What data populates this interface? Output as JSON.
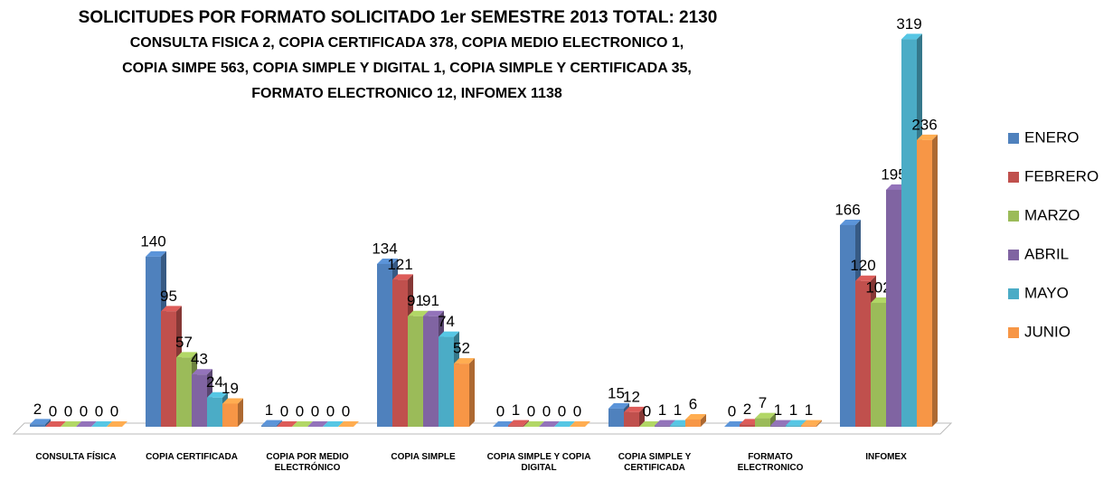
{
  "chart_data": {
    "type": "bar3d",
    "title": "SOLICITUDES POR FORMATO SOLICITADO  1er SEMESTRE 2013 TOTAL: 2130",
    "subtitle": [
      "CONSULTA FISICA 2, COPIA CERTIFICADA 378, COPIA MEDIO ELECTRONICO 1,",
      "COPIA SIMPE 563, COPIA SIMPLE Y DIGITAL 1, COPIA SIMPLE Y CERTIFICADA 35,",
      "FORMATO ELECTRONICO 12, INFOMEX 1138"
    ],
    "categories": [
      "CONSULTA FÍSICA",
      "COPIA CERTIFICADA",
      "COPIA POR MEDIO ELECTRÓNICO",
      "COPIA SIMPLE",
      "COPIA SIMPLE Y COPIA DIGITAL",
      "COPIA SIMPLE Y CERTIFICADA",
      "FORMATO ELECTRONICO",
      "INFOMEX"
    ],
    "series": [
      {
        "name": "ENERO",
        "color": "#4f81bd",
        "values": [
          2,
          140,
          1,
          134,
          0,
          15,
          0,
          166
        ]
      },
      {
        "name": "FEBRERO",
        "color": "#c0504d",
        "values": [
          0,
          95,
          0,
          121,
          1,
          12,
          2,
          120
        ]
      },
      {
        "name": "MARZO",
        "color": "#9bbb59",
        "values": [
          0,
          57,
          0,
          91,
          0,
          0,
          7,
          102
        ]
      },
      {
        "name": "ABRIL",
        "color": "#8064a2",
        "values": [
          0,
          43,
          0,
          91,
          0,
          1,
          1,
          195
        ]
      },
      {
        "name": "MAYO",
        "color": "#4bacc6",
        "values": [
          0,
          24,
          0,
          74,
          0,
          1,
          1,
          319
        ]
      },
      {
        "name": "JUNIO",
        "color": "#f79646",
        "values": [
          0,
          19,
          0,
          52,
          0,
          6,
          1,
          236
        ]
      }
    ],
    "ylim": [
      0,
      320
    ],
    "legend": "right"
  }
}
